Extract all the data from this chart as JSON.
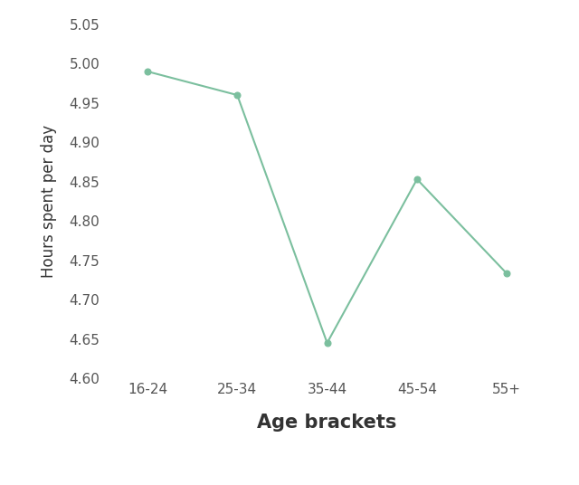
{
  "categories": [
    "16-24",
    "25-34",
    "35-44",
    "45-54",
    "55+"
  ],
  "values": [
    4.99,
    4.96,
    4.645,
    4.853,
    4.733
  ],
  "line_color": "#7bbf9e",
  "marker_color": "#7bbf9e",
  "marker_size": 5,
  "line_width": 1.5,
  "title": "",
  "xlabel": "Age brackets",
  "ylabel": "Hours spent per day",
  "ylim": [
    4.6,
    5.05
  ],
  "yticks": [
    4.6,
    4.65,
    4.7,
    4.75,
    4.8,
    4.85,
    4.9,
    4.95,
    5.0,
    5.05
  ],
  "xlabel_fontsize": 15,
  "ylabel_fontsize": 12,
  "tick_fontsize": 11,
  "tick_color": "#555555",
  "background_color": "#ffffff",
  "grid": false
}
